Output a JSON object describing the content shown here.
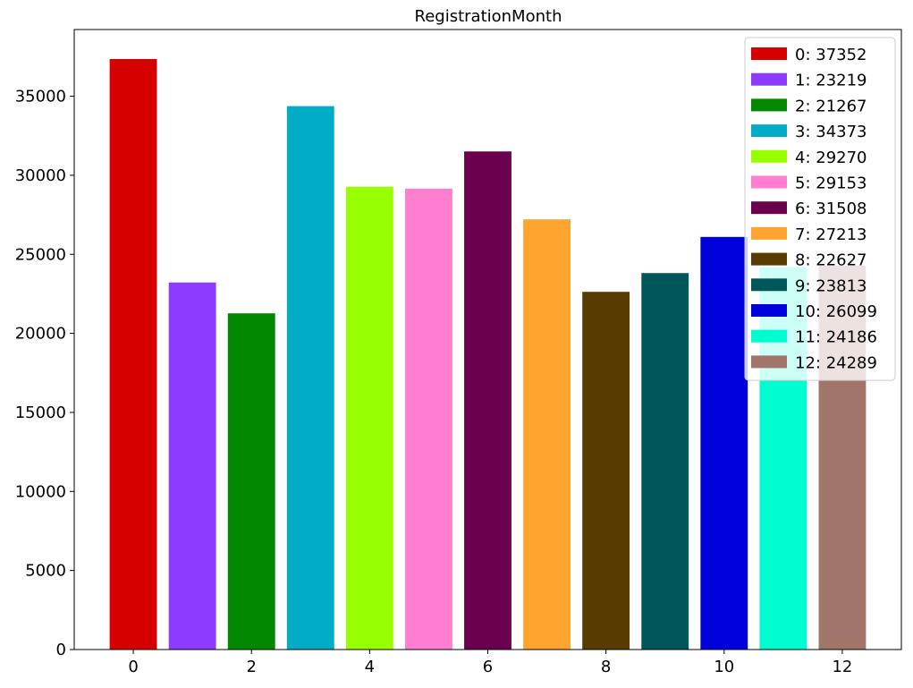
{
  "chart_data": {
    "type": "bar",
    "title": "RegistrationMonth",
    "xlabel": "",
    "ylabel": "",
    "categories": [
      0,
      1,
      2,
      3,
      4,
      5,
      6,
      7,
      8,
      9,
      10,
      11,
      12
    ],
    "values": [
      37352,
      23219,
      21267,
      34373,
      29270,
      29153,
      31508,
      27213,
      22627,
      23813,
      26099,
      24186,
      24289
    ],
    "colors": [
      "#d60000",
      "#8c3bff",
      "#018700",
      "#00acc6",
      "#97ff00",
      "#ff7ed1",
      "#6b004f",
      "#ffa52f",
      "#573b00",
      "#005659",
      "#0000dd",
      "#00fdcf",
      "#a17569"
    ],
    "xlim": [
      -1,
      13
    ],
    "ylim": [
      0,
      39220
    ],
    "xticks": [
      "0",
      "2",
      "4",
      "6",
      "8",
      "10",
      "12"
    ],
    "yticks": [
      "0",
      "5000",
      "10000",
      "15000",
      "20000",
      "25000",
      "30000",
      "35000"
    ],
    "legend": {
      "placement": "top-right",
      "entries": [
        "0: 37352",
        "1: 23219",
        "2: 21267",
        "3: 34373",
        "4: 29270",
        "5: 29153",
        "6: 31508",
        "7: 27213",
        "8: 22627",
        "9: 23813",
        "10: 26099",
        "11: 24186",
        "12: 24289"
      ]
    },
    "grid": false
  }
}
